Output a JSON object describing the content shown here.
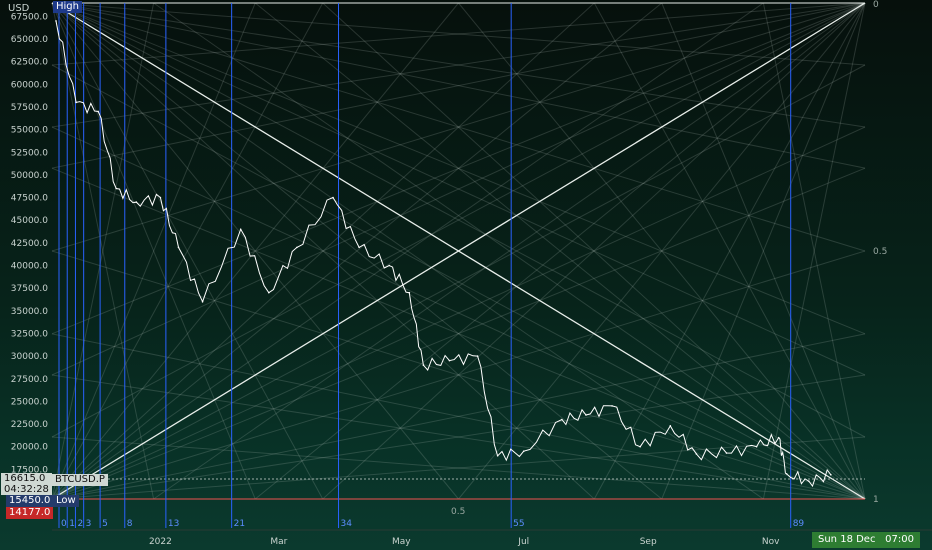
{
  "y_axis": {
    "unit": "USD",
    "ticks": [
      "67500.0",
      "65000.0",
      "62500.0",
      "60000.0",
      "57500.0",
      "55000.0",
      "52500.0",
      "50000.0",
      "47500.0",
      "45000.0",
      "42500.0",
      "40000.0",
      "37500.0",
      "35000.0",
      "32500.0",
      "30000.0",
      "27500.0",
      "25000.0",
      "22500.0",
      "20000.0",
      "17500.0"
    ]
  },
  "x_axis": {
    "ticks": [
      "2022",
      "Mar",
      "May",
      "Jul",
      "Sep",
      "Nov"
    ]
  },
  "fib_time_labels": [
    "0",
    "1",
    "2",
    "3",
    "5",
    "8",
    "13",
    "21",
    "34",
    "55",
    "89"
  ],
  "gann_labels": {
    "high": "High",
    "low": "Low",
    "top_right": "0",
    "mid_right": "0.5",
    "bottom_right": "1",
    "bottom_mid": "0.5"
  },
  "price_tags": {
    "current_price": "16615.0",
    "countdown": "04:32:28",
    "symbol": "BTCUSD.P",
    "low_value": "15450.0",
    "red_value": "14177.0"
  },
  "crosshair_time": {
    "date": "Sun 18 Dec '22",
    "time": "07:00"
  },
  "colors": {
    "price_line": "#ffffff",
    "fib_time_line": "#2962ff",
    "gann_lines": "#c8d2cc",
    "low_line": "#ef5350",
    "time_badge": "#2e7d32",
    "high_tag": "#1e3a8a",
    "low_tag": "#243b6b",
    "red_tag": "#c62828"
  },
  "chart_data": {
    "type": "line",
    "title": "",
    "xlabel": "",
    "ylabel": "",
    "ylim": [
      17500,
      67500
    ],
    "x": [
      "2021-11-10",
      "2021-11-20",
      "2021-12-01",
      "2021-12-10",
      "2021-12-20",
      "2022-01-01",
      "2022-01-10",
      "2022-01-22",
      "2022-02-10",
      "2022-02-24",
      "2022-03-10",
      "2022-03-28",
      "2022-04-10",
      "2022-04-25",
      "2022-05-05",
      "2022-05-12",
      "2022-05-25",
      "2022-06-08",
      "2022-06-18",
      "2022-07-01",
      "2022-07-20",
      "2022-08-01",
      "2022-08-14",
      "2022-08-28",
      "2022-09-12",
      "2022-09-25",
      "2022-10-10",
      "2022-10-25",
      "2022-11-05",
      "2022-11-09",
      "2022-11-20",
      "2022-12-01"
    ],
    "series": [
      {
        "values": [
          67000,
          58000,
          57000,
          48500,
          47000,
          47500,
          42000,
          36000,
          44000,
          37000,
          42000,
          47500,
          42000,
          40000,
          37000,
          29000,
          29500,
          30000,
          19000,
          19500,
          23000,
          23500,
          24500,
          20000,
          22300,
          19200,
          19300,
          20000,
          21000,
          17000,
          16200,
          16900
        ]
      }
    ],
    "fib_time_zone_numbers": [
      0,
      1,
      2,
      3,
      5,
      8,
      13,
      21,
      34,
      55,
      89
    ],
    "gann_box": {
      "high": 68000,
      "low": 15450,
      "start": "2021-11-08",
      "end": "2022-12-18"
    },
    "grid": false
  }
}
